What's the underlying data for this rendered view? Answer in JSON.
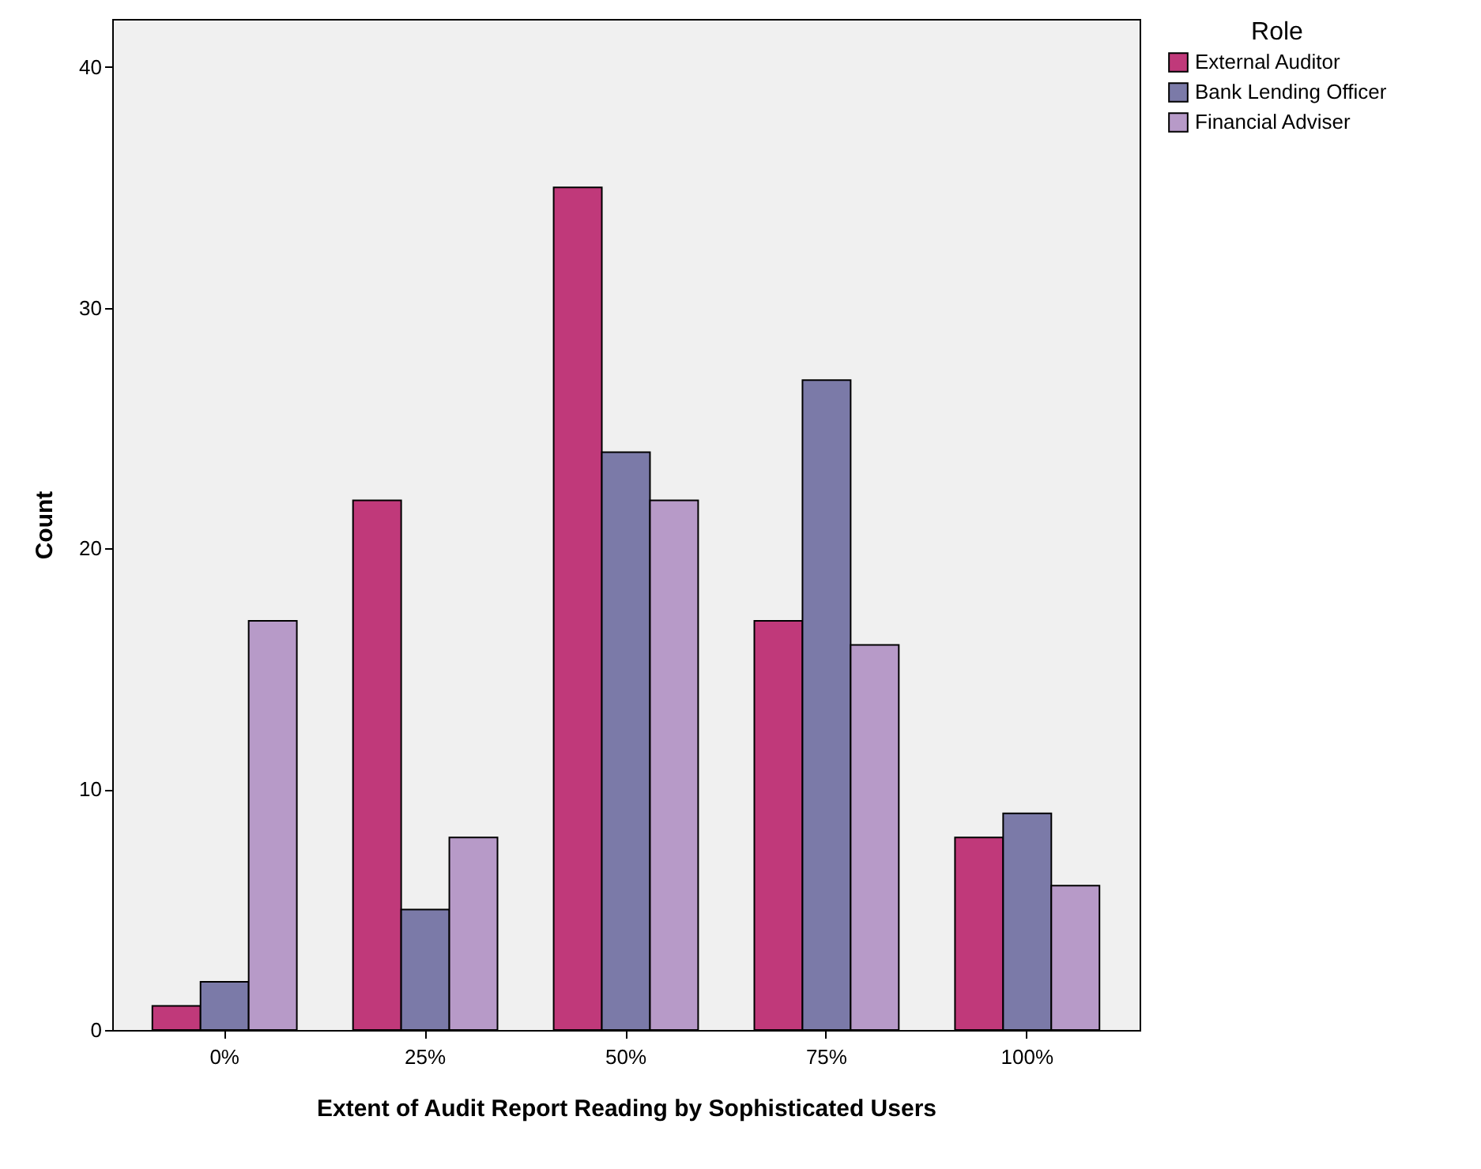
{
  "chart_data": {
    "type": "bar",
    "xlabel": "Extent of Audit Report Reading by Sophisticated Users",
    "ylabel": "Count",
    "legend_title": "Role",
    "categories": [
      "0%",
      "25%",
      "50%",
      "75%",
      "100%"
    ],
    "series": [
      {
        "name": "External Auditor",
        "color": "#c0397a",
        "values": [
          1,
          22,
          35,
          17,
          8
        ]
      },
      {
        "name": "Bank Lending Officer",
        "color": "#7b7aa8",
        "values": [
          2,
          5,
          24,
          27,
          9
        ]
      },
      {
        "name": "Financial Adviser",
        "color": "#b79ac8",
        "values": [
          17,
          8,
          22,
          16,
          6
        ]
      }
    ],
    "ylim": [
      0,
      42
    ],
    "yticks": [
      0,
      10,
      20,
      30,
      40
    ],
    "grid": false,
    "legend": "top right"
  }
}
